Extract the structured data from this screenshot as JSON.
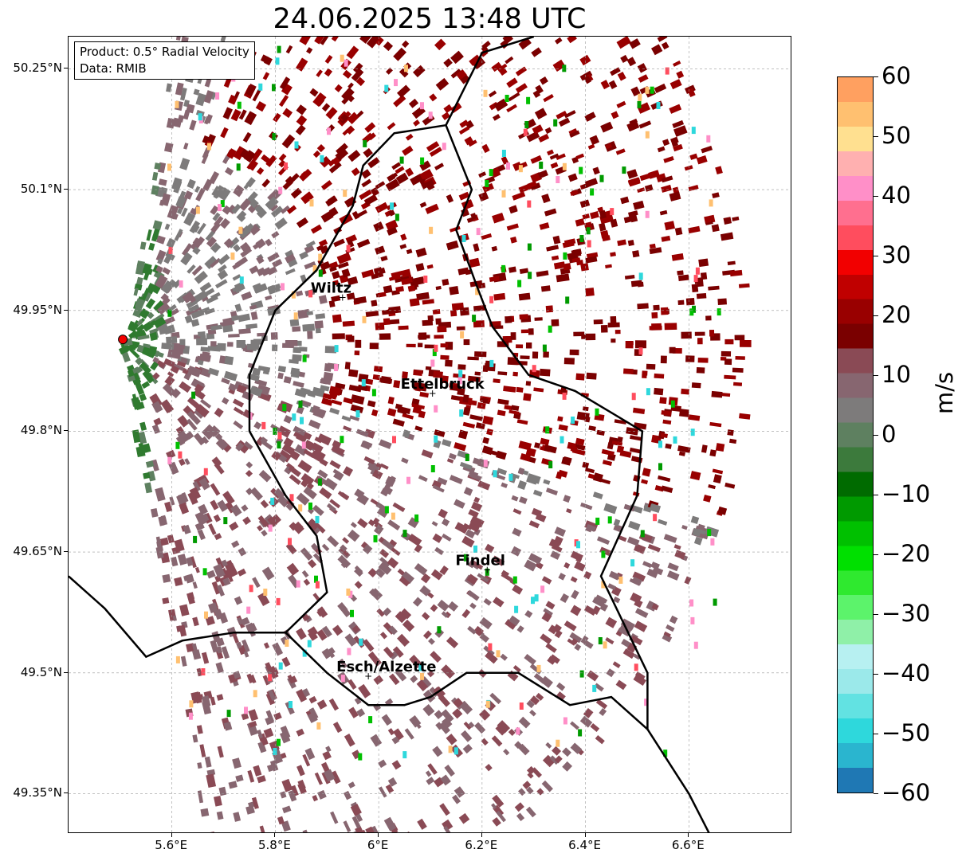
{
  "title": "24.06.2025 13:48 UTC",
  "info_box": {
    "line1": "Product: 0.5° Radial Velocity",
    "line2": "Data: RMIB"
  },
  "map": {
    "lon_range": [
      5.4,
      6.8
    ],
    "lat_range": [
      49.3,
      50.29
    ],
    "lat_ticks": [
      "50.25°N",
      "50.1°N",
      "49.95°N",
      "49.8°N",
      "49.65°N",
      "49.5°N",
      "49.35°N"
    ],
    "lat_values": [
      50.25,
      50.1,
      49.95,
      49.8,
      49.65,
      49.5,
      49.35
    ],
    "lon_ticks": [
      "5.6°E",
      "5.8°E",
      "6°E",
      "6.2°E",
      "6.4°E",
      "6.6°E"
    ],
    "lon_values": [
      5.6,
      5.8,
      6.0,
      6.2,
      6.4,
      6.6
    ],
    "radar_site": {
      "lon": 5.505,
      "lat": 49.914
    },
    "cities": [
      {
        "name": "Wiltz",
        "lon": 5.93,
        "lat": 49.966
      },
      {
        "name": "Ettelbruck",
        "lon": 6.104,
        "lat": 49.847
      },
      {
        "name": "Findel",
        "lon": 6.21,
        "lat": 49.628
      },
      {
        "name": "Esch/Alzette",
        "lon": 5.98,
        "lat": 49.496
      }
    ]
  },
  "colorbar": {
    "label": "m/s",
    "min": -60,
    "max": 60,
    "ticks": [
      "60",
      "50",
      "40",
      "30",
      "20",
      "10",
      "0",
      "−10",
      "−20",
      "−30",
      "−40",
      "−50",
      "−60"
    ],
    "tick_values": [
      60,
      50,
      40,
      30,
      20,
      10,
      0,
      -10,
      -20,
      -30,
      -40,
      -50,
      -60
    ],
    "colors": [
      "#1f78b4",
      "#2ab5cf",
      "#2ed8dc",
      "#62e2e2",
      "#9be9ea",
      "#b7f0f1",
      "#8ff0a8",
      "#5cf36b",
      "#2fe92f",
      "#00e000",
      "#00c000",
      "#009a00",
      "#006b00",
      "#3c7a3c",
      "#5e8060",
      "#7d7b7b",
      "#876670",
      "#8a4a55",
      "#7a0000",
      "#990000",
      "#c00000",
      "#f20000",
      "#ff4d5e",
      "#ff6f8f",
      "#ff8fc8",
      "#ffb0b0",
      "#ffe090",
      "#ffc070",
      "#ffa060"
    ]
  }
}
